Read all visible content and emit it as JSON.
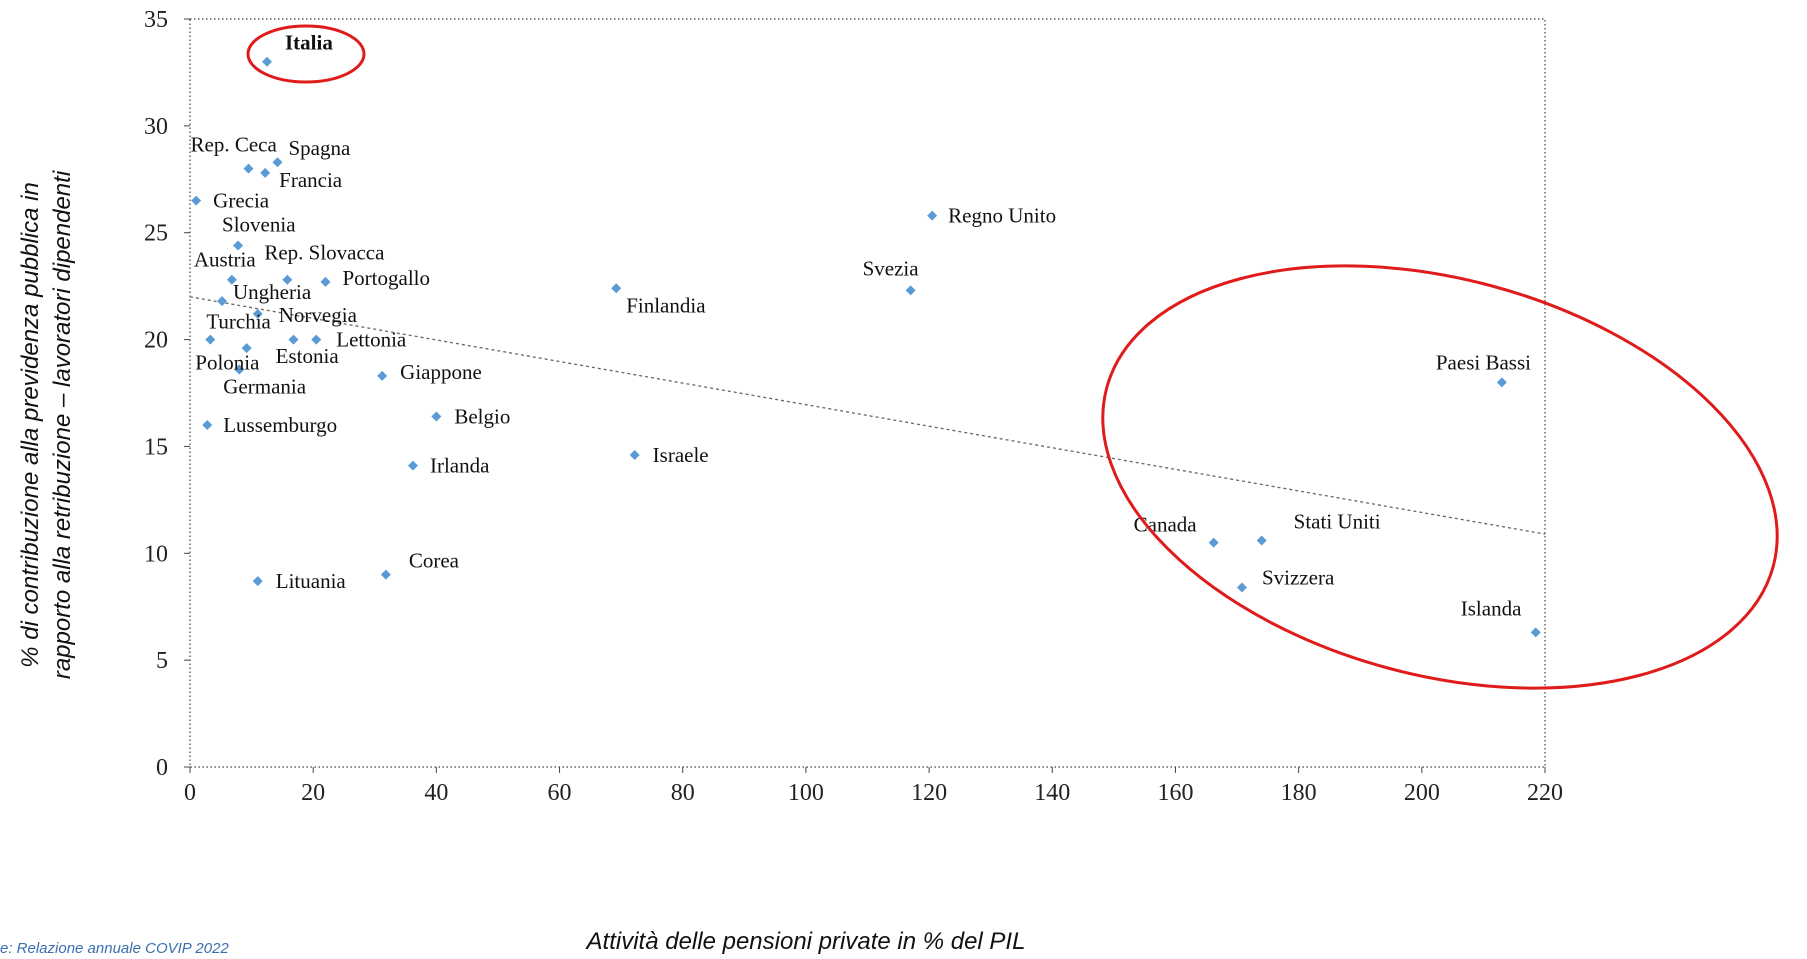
{
  "chart_data": {
    "type": "scatter",
    "xlabel": "Attività delle pensioni private in % del PIL",
    "ylabel_lines": [
      "% di contribuzione alla previdenza pubblica in",
      "rapporto alla retribuzione – lavoratori dipendenti"
    ],
    "source": "e: Relazione annuale COVIP 2022",
    "xlim": [
      0,
      220
    ],
    "ylim": [
      0,
      35
    ],
    "xticks": [
      "0",
      "20",
      "40",
      "60",
      "80",
      "100",
      "120",
      "140",
      "160",
      "180",
      "200",
      "220"
    ],
    "yticks": [
      "0",
      "5",
      "10",
      "15",
      "20",
      "25",
      "30",
      "35"
    ],
    "marker_color": "#5b9bd5",
    "highlight_color": "#e01b1b",
    "trendline": {
      "x1": 0,
      "y1": 22.0,
      "x2": 220,
      "y2": 10.9,
      "style": "dotted",
      "color": "#666666"
    },
    "points": [
      {
        "label": "Italia",
        "x": 12.5,
        "y": 33.0,
        "bold": true
      },
      {
        "label": "Rep. Ceca",
        "x": 9.5,
        "y": 28.0
      },
      {
        "label": "Spagna",
        "x": 14.2,
        "y": 28.3
      },
      {
        "label": "Francia",
        "x": 12.2,
        "y": 27.8
      },
      {
        "label": "Grecia",
        "x": 1.0,
        "y": 26.5
      },
      {
        "label": "Slovenia",
        "x": 7.8,
        "y": 24.4
      },
      {
        "label": "Austria",
        "x": 6.8,
        "y": 22.8
      },
      {
        "label": "Rep. Slovacca",
        "x": 15.8,
        "y": 22.8
      },
      {
        "label": "Portogallo",
        "x": 22.0,
        "y": 22.7
      },
      {
        "label": "Ungheria",
        "x": 5.2,
        "y": 21.8
      },
      {
        "label": "Norvegia",
        "x": 11.0,
        "y": 21.2
      },
      {
        "label": "Turchia",
        "x": 3.3,
        "y": 20.0
      },
      {
        "label": "Lettonia",
        "x": 16.8,
        "y": 20.0
      },
      {
        "label": "Lettonia-b",
        "x": 20.5,
        "y": 20.0
      },
      {
        "label": "Estonia",
        "x": 9.2,
        "y": 19.6
      },
      {
        "label": "Polonia",
        "x": 8.0,
        "y": 18.6
      },
      {
        "label": "Germania",
        "x": 8.0,
        "y": 18.6
      },
      {
        "label": "Giappone",
        "x": 31.2,
        "y": 18.3
      },
      {
        "label": "Lussemburgo",
        "x": 2.8,
        "y": 16.0
      },
      {
        "label": "Belgio",
        "x": 40.0,
        "y": 16.4
      },
      {
        "label": "Irlanda",
        "x": 36.2,
        "y": 14.1
      },
      {
        "label": "Israele",
        "x": 72.2,
        "y": 14.6
      },
      {
        "label": "Lituania",
        "x": 11.0,
        "y": 8.7
      },
      {
        "label": "Corea",
        "x": 31.8,
        "y": 9.0
      },
      {
        "label": "Finlandia",
        "x": 69.2,
        "y": 22.4
      },
      {
        "label": "Svezia",
        "x": 117.0,
        "y": 22.3
      },
      {
        "label": "Regno Unito",
        "x": 120.5,
        "y": 25.8
      },
      {
        "label": "Paesi Bassi",
        "x": 213.0,
        "y": 18.0
      },
      {
        "label": "Canada",
        "x": 166.2,
        "y": 10.5
      },
      {
        "label": "Stati Uniti",
        "x": 174.0,
        "y": 10.6
      },
      {
        "label": "Svizzera",
        "x": 170.8,
        "y": 8.4
      },
      {
        "label": "Islanda",
        "x": 218.5,
        "y": 6.3
      }
    ]
  }
}
